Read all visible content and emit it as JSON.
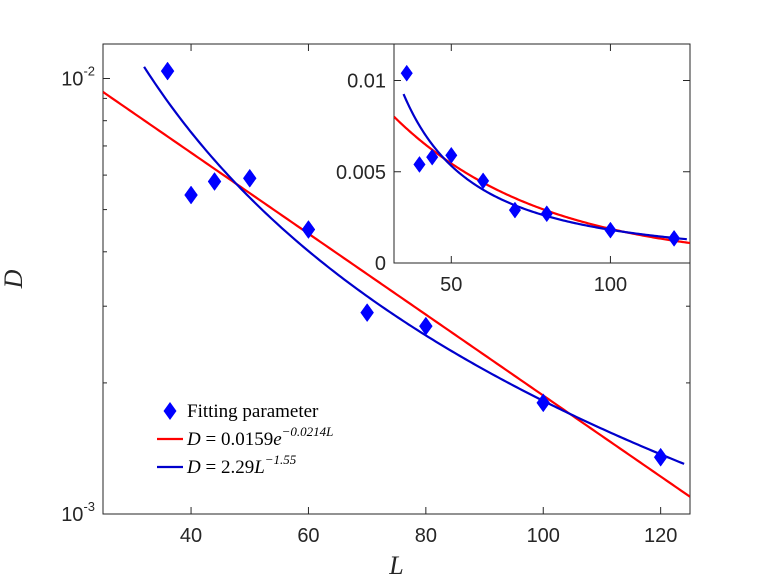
{
  "chart_data": [
    {
      "type": "scatter",
      "role": "main",
      "xscale": "linear",
      "yscale": "log",
      "xlim": [
        25,
        125
      ],
      "ylim": [
        0.001,
        0.012
      ],
      "xlabel": "L",
      "ylabel": "D",
      "xticks": [
        {
          "value": 40,
          "label": "40"
        },
        {
          "value": 60,
          "label": "60"
        },
        {
          "value": 80,
          "label": "80"
        },
        {
          "value": 100,
          "label": "100"
        },
        {
          "value": 120,
          "label": "120"
        }
      ],
      "yticks": [
        {
          "value": 0.01,
          "base": "10",
          "exp": "-2"
        },
        {
          "value": 0.001,
          "base": "10",
          "exp": "-3"
        }
      ],
      "grid": false,
      "legend_position": "bottom-left",
      "series": [
        {
          "name": "Fitting parameter",
          "kind": "markers",
          "marker": "diamond",
          "color": "#0000ff",
          "x": [
            36,
            40,
            44,
            50,
            60,
            70,
            80,
            100,
            120
          ],
          "y": [
            0.0104,
            0.0054,
            0.0058,
            0.0059,
            0.0045,
            0.0029,
            0.0027,
            0.0018,
            0.00135
          ]
        },
        {
          "name": "exponential fit",
          "kind": "line",
          "color": "#ff0000",
          "formula": {
            "type": "exp",
            "a": 0.0159,
            "b": -0.0214
          },
          "x_range": [
            25,
            125
          ]
        },
        {
          "name": "power-law fit",
          "kind": "line",
          "color": "#0000cc",
          "formula": {
            "type": "power",
            "a": 2.29,
            "b": -1.55
          },
          "x_range": [
            32,
            124
          ]
        }
      ],
      "legend": [
        {
          "series": 0,
          "text": "Fitting parameter"
        },
        {
          "series": 1,
          "lhs": "D",
          "eq": " = 0.0159",
          "base": "e",
          "exp": "−0.0214L"
        },
        {
          "series": 2,
          "lhs": "D",
          "eq": " = 2.29",
          "base": "L",
          "exp": "−1.55"
        }
      ]
    },
    {
      "type": "scatter",
      "role": "inset",
      "xscale": "linear",
      "yscale": "linear",
      "xlim": [
        32,
        125
      ],
      "ylim": [
        0,
        0.012
      ],
      "xlabel": "",
      "ylabel": "",
      "xticks": [
        {
          "value": 50,
          "label": "50"
        },
        {
          "value": 100,
          "label": "100"
        }
      ],
      "yticks": [
        {
          "value": 0.01,
          "label": "0.01"
        },
        {
          "value": 0.005,
          "label": "0.005"
        },
        {
          "value": 0,
          "label": "0"
        }
      ],
      "grid": false,
      "series": [
        {
          "name": "Fitting parameter",
          "kind": "markers",
          "marker": "diamond",
          "color": "#0000ff",
          "x": [
            36,
            40,
            44,
            50,
            60,
            70,
            80,
            100,
            120
          ],
          "y": [
            0.0104,
            0.0054,
            0.0058,
            0.0059,
            0.0045,
            0.0029,
            0.0027,
            0.0018,
            0.00135
          ]
        },
        {
          "name": "exponential fit",
          "kind": "line",
          "color": "#ff0000",
          "formula": {
            "type": "exp",
            "a": 0.0159,
            "b": -0.0214
          },
          "x_range": [
            32,
            125
          ]
        },
        {
          "name": "power-law fit",
          "kind": "line",
          "color": "#0000cc",
          "formula": {
            "type": "power",
            "a": 2.29,
            "b": -1.55
          },
          "x_range": [
            35,
            124
          ]
        }
      ]
    }
  ]
}
